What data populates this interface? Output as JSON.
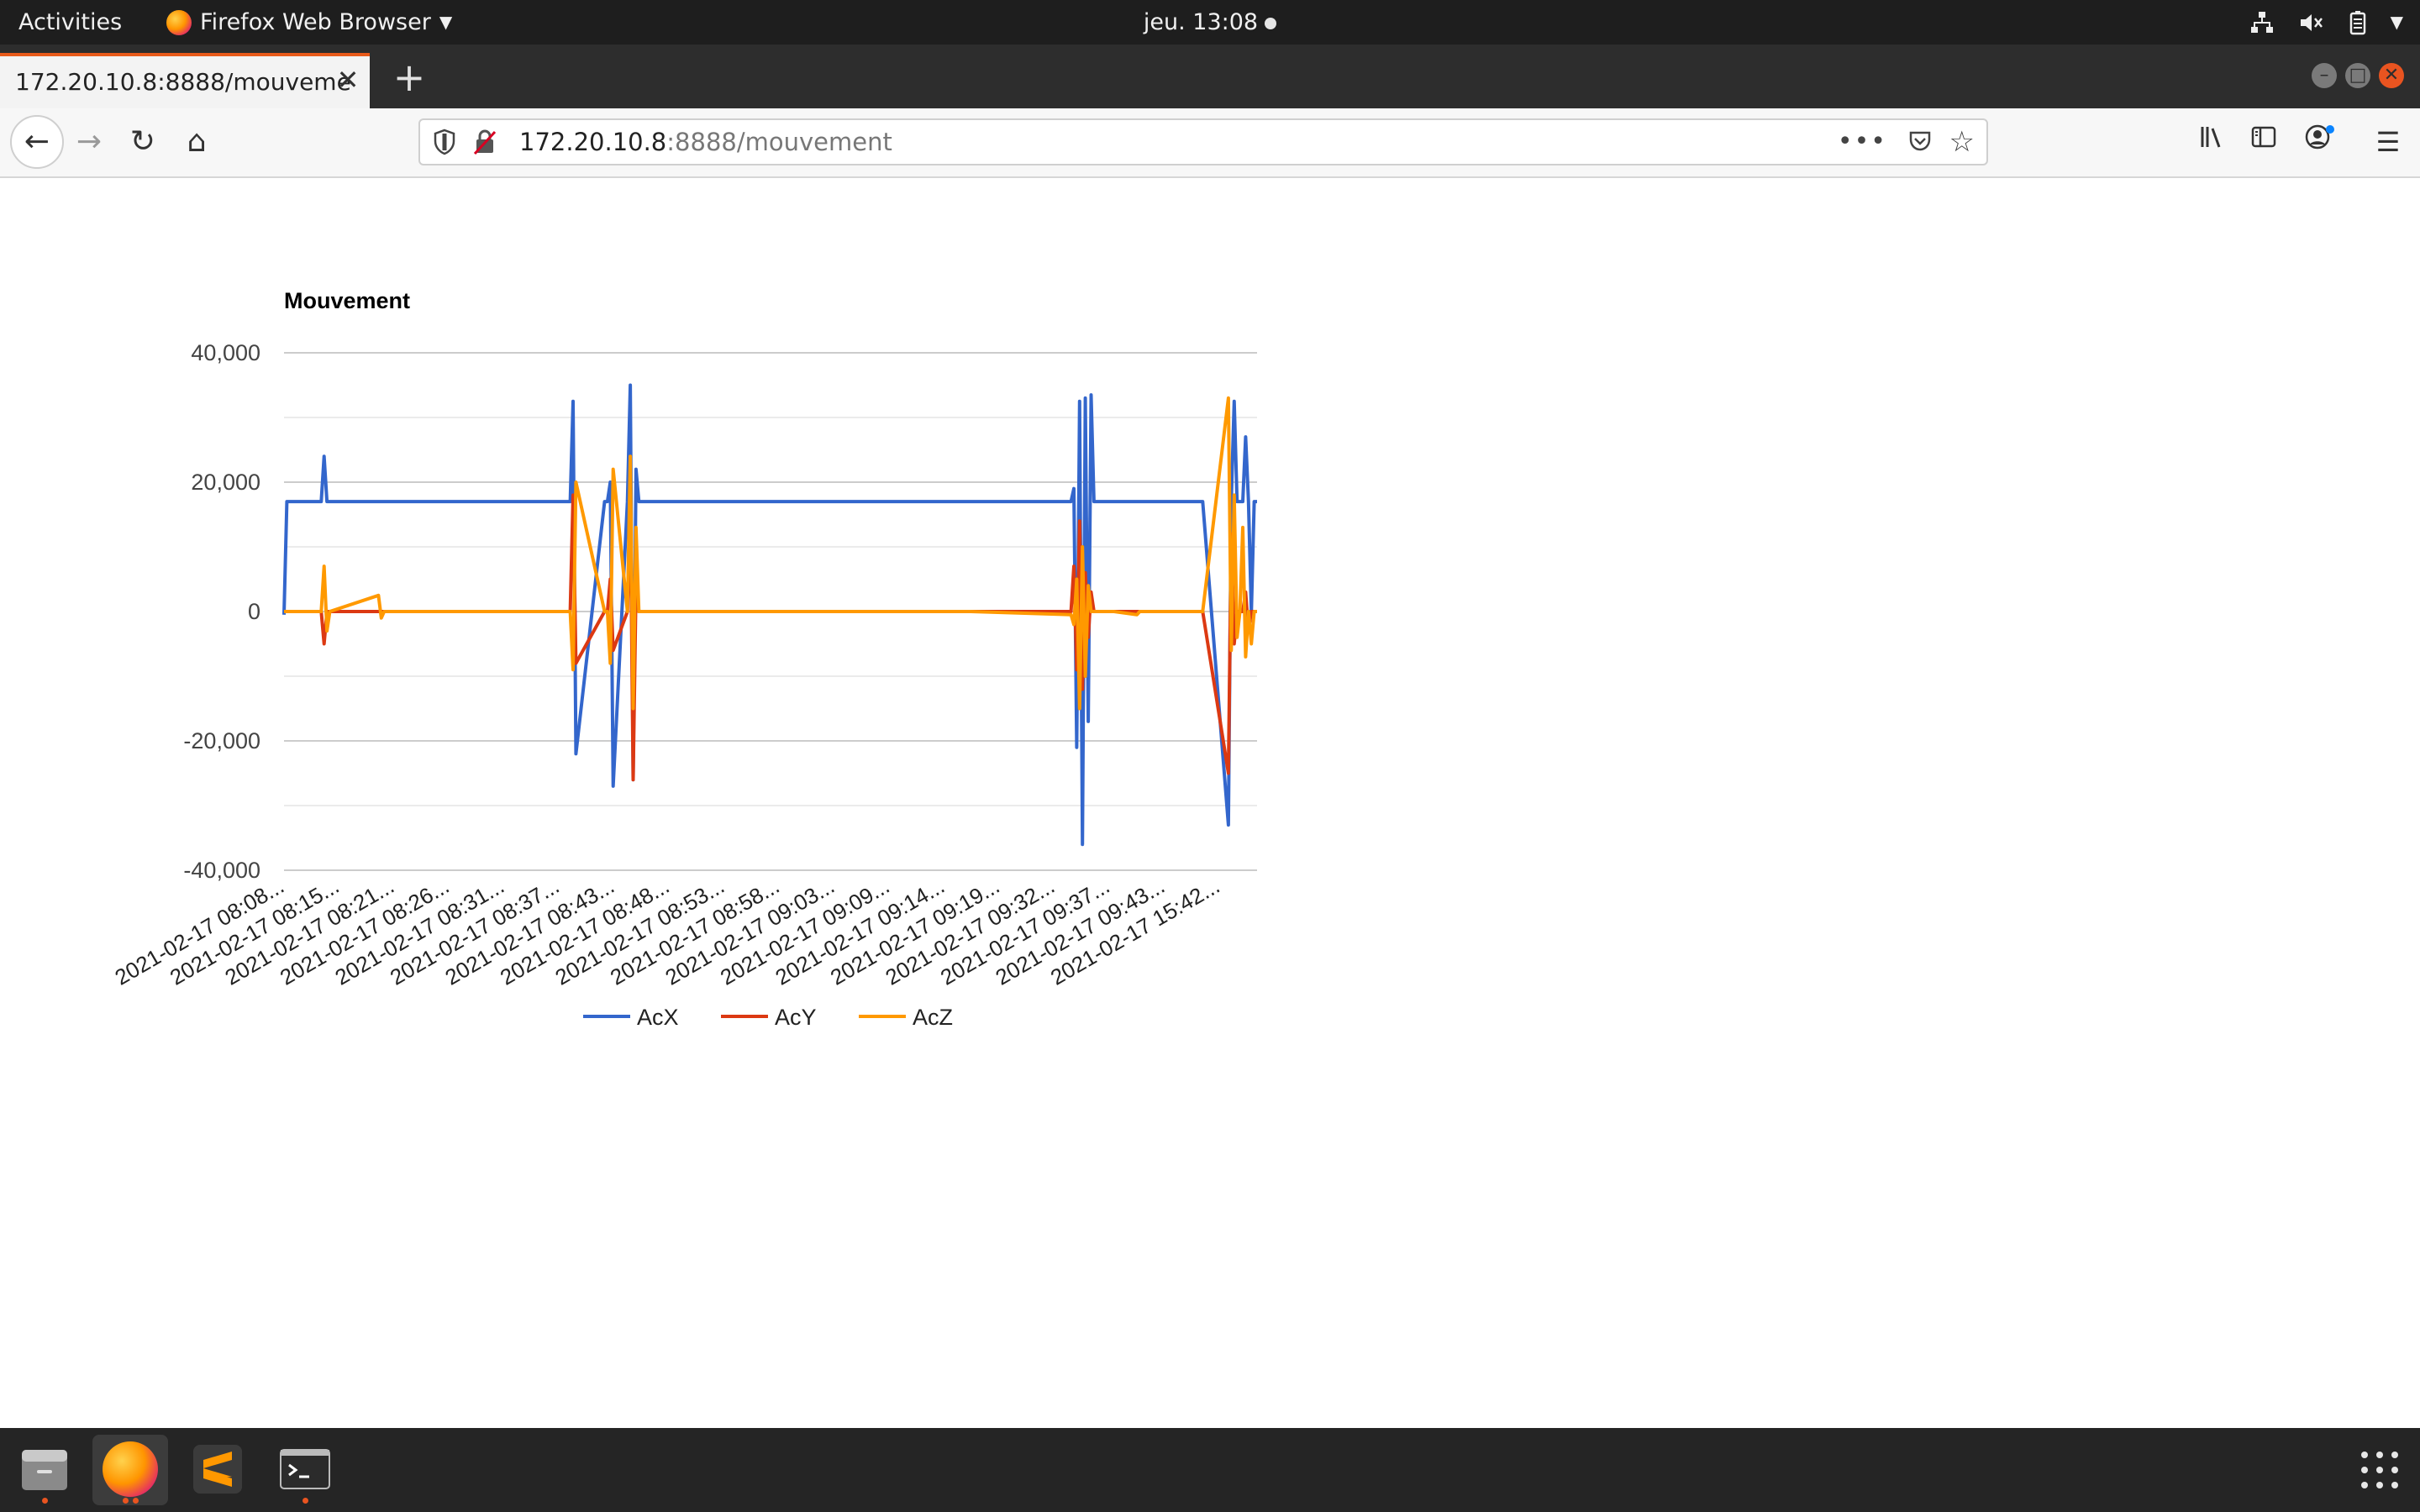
{
  "topbar": {
    "activities": "Activities",
    "app_name": "Firefox Web Browser",
    "clock": "jeu. 13:08"
  },
  "browser": {
    "tab_title": "172.20.10.8:8888/mouveme",
    "url_host": "172.20.10.8",
    "url_rest": ":8888/mouvement",
    "more_label": "•••"
  },
  "colors": {
    "acx": "#3366cc",
    "acy": "#dc3912",
    "acz": "#ff9900",
    "accent": "#e95420"
  },
  "chart_data": {
    "type": "line",
    "title": "Mouvement",
    "xlabel": "",
    "ylabel": "",
    "ylim": [
      -40000,
      40000
    ],
    "yticks": [
      40000,
      20000,
      0,
      -20000,
      -40000
    ],
    "ytick_labels": [
      "40,000",
      "20,000",
      "0",
      "-20,000",
      "-40,000"
    ],
    "grid": true,
    "legend": "bottom",
    "x_tick_labels": [
      "2021-02-17 08:08...",
      "2021-02-17 08:15...",
      "2021-02-17 08:21...",
      "2021-02-17 08:26...",
      "2021-02-17 08:31...",
      "2021-02-17 08:37...",
      "2021-02-17 08:43...",
      "2021-02-17 08:48...",
      "2021-02-17 08:53...",
      "2021-02-17 08:58...",
      "2021-02-17 09:03...",
      "2021-02-17 09:09...",
      "2021-02-17 09:14...",
      "2021-02-17 09:19...",
      "2021-02-17 09:32...",
      "2021-02-17 09:37...",
      "2021-02-17 09:43...",
      "2021-02-17 15:42..."
    ],
    "x": [
      0,
      1,
      2,
      13,
      14,
      15,
      16,
      33,
      34,
      35,
      100,
      101,
      102,
      112,
      113,
      114,
      115,
      120,
      121,
      122,
      123,
      124,
      126,
      128,
      129,
      130,
      131,
      132,
      133,
      134,
      135,
      150,
      151,
      152,
      153,
      154,
      155,
      156,
      157,
      158,
      159,
      160,
      161,
      162,
      190,
      200,
      230,
      240,
      275,
      276,
      277,
      278,
      279,
      280,
      281,
      282,
      283,
      290,
      298,
      299,
      300,
      301,
      302,
      303,
      304,
      305,
      306,
      307,
      308,
      309,
      310,
      312,
      314,
      315,
      316,
      317,
      318,
      319,
      320,
      321,
      330,
      331,
      332,
      333,
      334,
      335,
      336,
      337,
      338,
      339,
      340
    ],
    "series": [
      {
        "name": "AcX",
        "values": [
          -500,
          17000,
          17000,
          17000,
          24000,
          17000,
          17000,
          17000,
          17000,
          17000,
          17000,
          32500,
          -22000,
          17000,
          17000,
          20000,
          -27000,
          17000,
          35000,
          -26000,
          22000,
          17000,
          17000,
          17000,
          17000,
          17000,
          17000,
          17000,
          17000,
          17000,
          17000,
          17000,
          17000,
          17000,
          17000,
          17000,
          17000,
          17000,
          17000,
          17000,
          17000,
          17000,
          17000,
          17000,
          17000,
          17000,
          17000,
          17000,
          17000,
          19000,
          -21000,
          32500,
          -36000,
          33000,
          -17000,
          33500,
          17000,
          17000,
          17000,
          17000,
          17000,
          17000,
          17000,
          17000,
          17000,
          17000,
          17000,
          17000,
          17000,
          17000,
          17000,
          17000,
          17000,
          17000,
          17000,
          17000,
          17000,
          17000,
          17000,
          17000,
          -33000,
          17000,
          32500,
          17000,
          17000,
          17000,
          27000,
          17000,
          -200,
          17000,
          17000
        ]
      },
      {
        "name": "AcY",
        "values": [
          0,
          0,
          0,
          0,
          -5000,
          0,
          0,
          0,
          0,
          0,
          0,
          18000,
          -8000,
          0,
          0,
          5000,
          -6000,
          0,
          18000,
          -26000,
          4000,
          0,
          0,
          0,
          0,
          0,
          0,
          0,
          0,
          0,
          0,
          0,
          0,
          0,
          0,
          0,
          0,
          0,
          0,
          0,
          0,
          0,
          0,
          0,
          0,
          0,
          0,
          0,
          0,
          7000,
          -9000,
          14000,
          -12000,
          6000,
          -4000,
          3000,
          0,
          0,
          0,
          0,
          0,
          0,
          0,
          0,
          0,
          0,
          0,
          0,
          0,
          0,
          0,
          0,
          0,
          0,
          0,
          0,
          0,
          0,
          0,
          0,
          -25000,
          12000,
          -5000,
          0,
          0,
          0,
          3000,
          -3000,
          0,
          0,
          0
        ]
      },
      {
        "name": "AcZ",
        "values": [
          0,
          0,
          0,
          0,
          7000,
          -3000,
          0,
          2500,
          -1000,
          0,
          0,
          -9000,
          20000,
          0,
          0,
          -8000,
          22000,
          0,
          24000,
          -15000,
          13000,
          0,
          0,
          0,
          0,
          0,
          0,
          0,
          0,
          0,
          0,
          0,
          0,
          0,
          0,
          0,
          0,
          0,
          0,
          0,
          0,
          0,
          0,
          0,
          0,
          0,
          0,
          0,
          -500,
          -2000,
          5000,
          -15000,
          10000,
          -10000,
          4000,
          0,
          0,
          0,
          -500,
          0,
          0,
          0,
          0,
          0,
          0,
          0,
          0,
          0,
          0,
          0,
          0,
          0,
          0,
          0,
          0,
          0,
          0,
          0,
          0,
          0,
          33000,
          -6000,
          18000,
          -4000,
          0,
          13000,
          -7000,
          0,
          -5000,
          0,
          0
        ]
      }
    ]
  },
  "legend": {
    "items": [
      "AcX",
      "AcY",
      "AcZ"
    ]
  },
  "dock": {
    "items": [
      "files-icon",
      "firefox-icon",
      "sublime-text-icon",
      "terminal-icon"
    ]
  }
}
